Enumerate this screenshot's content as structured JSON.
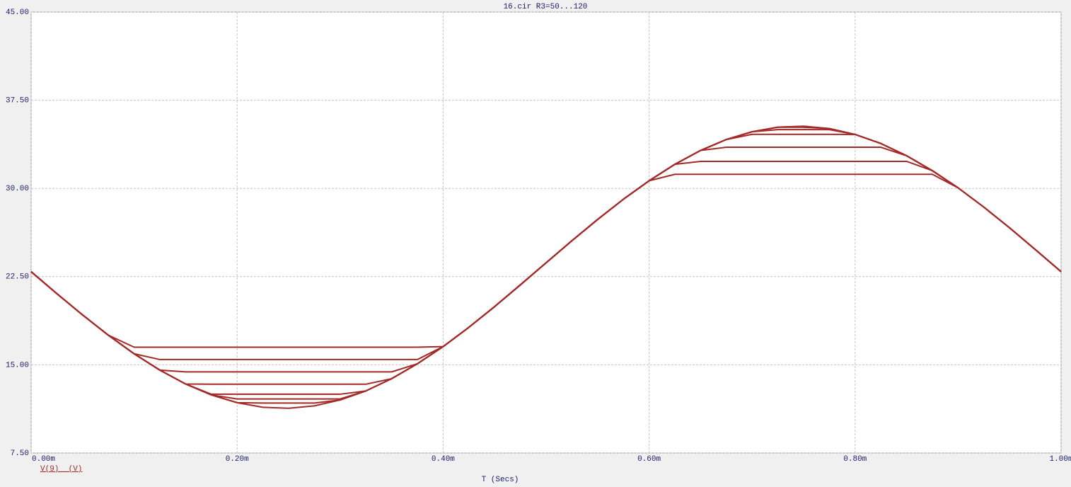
{
  "chart_data": {
    "type": "line",
    "title": "16.cir R3=50...120",
    "xlabel": "T (Secs)",
    "legend": "V(9)  (V)",
    "color": "#a32a28",
    "grid": true,
    "xlim": [
      0,
      0.001
    ],
    "ylim": [
      7.5,
      45
    ],
    "xticks": [
      {
        "value": 0,
        "label": "0.00m"
      },
      {
        "value": 0.0002,
        "label": "0.20m"
      },
      {
        "value": 0.0004,
        "label": "0.40m"
      },
      {
        "value": 0.0006,
        "label": "0.60m"
      },
      {
        "value": 0.0008,
        "label": "0.80m"
      },
      {
        "value": 0.001,
        "label": "1.00m"
      }
    ],
    "yticks": [
      {
        "value": 7.5,
        "label": "7.50"
      },
      {
        "value": 15,
        "label": "15.00"
      },
      {
        "value": 22.5,
        "label": "22.50"
      },
      {
        "value": 30,
        "label": "30.00"
      },
      {
        "value": 37.5,
        "label": "37.50"
      },
      {
        "value": 45,
        "label": "45.00"
      }
    ],
    "x": [
      0,
      2.5e-05,
      5e-05,
      7.5e-05,
      0.0001,
      0.000125,
      0.00015,
      0.000175,
      0.0002,
      0.000225,
      0.00025,
      0.000275,
      0.0003,
      0.000325,
      0.00035,
      0.000375,
      0.0004,
      0.000425,
      0.00045,
      0.000475,
      0.0005,
      0.000525,
      0.00055,
      0.000575,
      0.0006,
      0.000625,
      0.00065,
      0.000675,
      0.0007,
      0.000725,
      0.00075,
      0.000775,
      0.0008,
      0.000825,
      0.00085,
      0.000875,
      0.0009,
      0.000925,
      0.00095,
      0.000975,
      0.001
    ],
    "series": [
      {
        "values": [
          22.92,
          21.05,
          19.24,
          17.52,
          16.5,
          16.5,
          16.5,
          16.5,
          16.5,
          16.5,
          16.5,
          16.5,
          16.5,
          16.5,
          16.5,
          16.5,
          16.55,
          18.19,
          19.95,
          21.8,
          23.68,
          25.55,
          27.36,
          29.08,
          30.65,
          31.2,
          31.2,
          31.2,
          31.2,
          31.2,
          31.2,
          31.2,
          31.2,
          31.2,
          31.2,
          31.2,
          30.05,
          28.41,
          26.65,
          24.8,
          22.92
        ]
      },
      {
        "values": [
          22.92,
          21.05,
          19.24,
          17.52,
          15.94,
          15.45,
          15.45,
          15.45,
          15.45,
          15.45,
          15.45,
          15.45,
          15.45,
          15.45,
          15.45,
          15.45,
          16.55,
          18.19,
          19.95,
          21.8,
          23.68,
          25.55,
          27.36,
          29.08,
          30.65,
          32.05,
          32.3,
          32.3,
          32.3,
          32.3,
          32.3,
          32.3,
          32.3,
          32.3,
          32.3,
          31.51,
          30.05,
          28.41,
          26.65,
          24.8,
          22.92
        ]
      },
      {
        "values": [
          22.92,
          21.05,
          19.24,
          17.52,
          15.94,
          14.55,
          14.4,
          14.4,
          14.4,
          14.4,
          14.4,
          14.4,
          14.4,
          14.4,
          14.4,
          15.09,
          16.55,
          18.19,
          19.95,
          21.8,
          23.68,
          25.55,
          27.36,
          29.08,
          30.65,
          32.05,
          33.23,
          33.5,
          33.5,
          33.5,
          33.5,
          33.5,
          33.5,
          33.5,
          32.78,
          31.51,
          30.05,
          28.41,
          26.65,
          24.8,
          22.92
        ]
      },
      {
        "values": [
          22.92,
          21.05,
          19.24,
          17.52,
          15.94,
          14.55,
          13.37,
          13.35,
          13.35,
          13.35,
          13.35,
          13.35,
          13.35,
          13.35,
          13.82,
          15.09,
          16.55,
          18.19,
          19.95,
          21.8,
          23.68,
          25.55,
          27.36,
          29.08,
          30.65,
          32.05,
          33.23,
          34.16,
          34.6,
          34.6,
          34.6,
          34.6,
          34.59,
          33.82,
          32.78,
          31.51,
          30.05,
          28.41,
          26.65,
          24.8,
          22.92
        ]
      },
      {
        "values": [
          22.92,
          21.05,
          19.24,
          17.52,
          15.94,
          14.55,
          13.37,
          12.5,
          12.5,
          12.5,
          12.5,
          12.5,
          12.5,
          12.78,
          13.82,
          15.09,
          16.55,
          18.19,
          19.95,
          21.8,
          23.68,
          25.55,
          27.36,
          29.08,
          30.65,
          32.05,
          33.23,
          34.16,
          34.82,
          35.0,
          35.0,
          35.0,
          34.59,
          33.82,
          32.78,
          31.51,
          30.05,
          28.41,
          26.65,
          24.8,
          22.92
        ]
      },
      {
        "values": [
          22.92,
          21.05,
          19.24,
          17.52,
          15.94,
          14.55,
          13.37,
          12.44,
          12.1,
          12.1,
          12.1,
          12.1,
          12.1,
          12.78,
          13.82,
          15.09,
          16.55,
          18.19,
          19.95,
          21.8,
          23.68,
          25.55,
          27.36,
          29.08,
          30.65,
          32.05,
          33.23,
          34.16,
          34.82,
          35.2,
          35.2,
          35.09,
          34.59,
          33.82,
          32.78,
          31.51,
          30.05,
          28.41,
          26.65,
          24.8,
          22.92
        ]
      },
      {
        "values": [
          22.92,
          21.05,
          19.24,
          17.52,
          15.94,
          14.55,
          13.37,
          12.44,
          11.78,
          11.75,
          11.75,
          11.75,
          12.01,
          12.78,
          13.82,
          15.09,
          16.55,
          18.19,
          19.95,
          21.8,
          23.68,
          25.55,
          27.36,
          29.08,
          30.65,
          32.05,
          33.23,
          34.16,
          34.82,
          35.21,
          35.29,
          35.09,
          34.59,
          33.82,
          32.78,
          31.51,
          30.05,
          28.41,
          26.65,
          24.8,
          22.92
        ]
      },
      {
        "values": [
          22.92,
          21.05,
          19.24,
          17.52,
          15.94,
          14.55,
          13.37,
          12.44,
          11.78,
          11.39,
          11.31,
          11.51,
          12.01,
          12.78,
          13.82,
          15.09,
          16.55,
          18.19,
          19.95,
          21.8,
          23.68,
          25.55,
          27.36,
          29.08,
          30.65,
          32.05,
          33.23,
          34.16,
          34.82,
          35.21,
          35.29,
          35.09,
          34.59,
          33.82,
          32.78,
          31.51,
          30.05,
          28.41,
          26.65,
          24.8,
          22.92
        ]
      }
    ]
  }
}
